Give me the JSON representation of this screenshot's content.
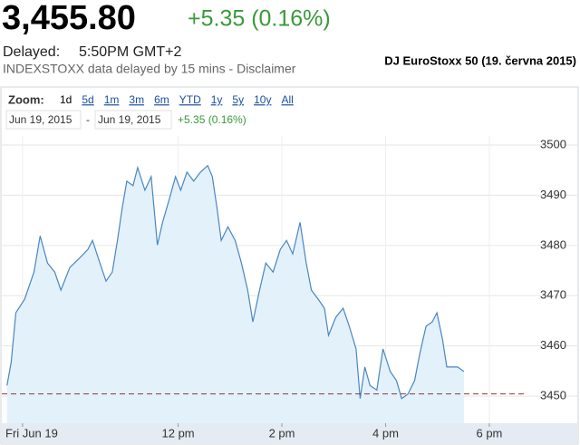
{
  "header": {
    "price": "3,455.80",
    "change": "+5.35 (0.16%)",
    "delayed_label": "Delayed:",
    "delayed_time": "5:50PM GMT+2",
    "source": "INDEXSTOXX data delayed by 15 mins - Disclaimer",
    "caption": "DJ EuroStoxx 50 (19. června 2015)"
  },
  "zoom": {
    "label": "Zoom:",
    "options": [
      "1d",
      "5d",
      "1m",
      "3m",
      "6m",
      "YTD",
      "1y",
      "5y",
      "10y",
      "All"
    ]
  },
  "range": {
    "from": "Jun 19, 2015",
    "separator": "-",
    "to": "Jun 19, 2015",
    "change": "+5.35 (0.16%)"
  },
  "chart_data": {
    "type": "area",
    "x": [
      8.7,
      8.78,
      8.87,
      9.04,
      9.22,
      9.34,
      9.48,
      9.62,
      9.74,
      9.91,
      10.09,
      10.26,
      10.35,
      10.49,
      10.61,
      10.73,
      10.83,
      10.92,
      11.01,
      11.13,
      11.22,
      11.36,
      11.48,
      11.6,
      11.7,
      11.83,
      11.95,
      12.05,
      12.17,
      12.3,
      12.43,
      12.57,
      12.66,
      12.75,
      12.83,
      12.96,
      13.1,
      13.22,
      13.34,
      13.44,
      13.57,
      13.69,
      13.83,
      13.97,
      14.09,
      14.21,
      14.35,
      14.47,
      14.57,
      14.7,
      14.82,
      14.9,
      15.04,
      15.18,
      15.3,
      15.43,
      15.51,
      15.6,
      15.7,
      15.83,
      15.95,
      16.09,
      16.21,
      16.31,
      16.43,
      16.56,
      16.66,
      16.78,
      16.9,
      16.99,
      17.1,
      17.18,
      17.39,
      17.51
    ],
    "series": [
      {
        "color": "#4a86c0",
        "values": [
          3452.1,
          3456.7,
          3466.6,
          3469.3,
          3474.7,
          3481.9,
          3476.5,
          3474.7,
          3471.1,
          3475.6,
          3477.4,
          3479.2,
          3481.0,
          3476.5,
          3472.9,
          3474.7,
          3481.0,
          3487.4,
          3492.8,
          3491.9,
          3495.5,
          3491.0,
          3493.7,
          3480.1,
          3484.6,
          3489.2,
          3493.7,
          3491.0,
          3494.6,
          3492.8,
          3494.6,
          3495.9,
          3493.7,
          3487.4,
          3481.0,
          3483.7,
          3481.0,
          3476.5,
          3471.1,
          3464.8,
          3471.1,
          3476.5,
          3474.7,
          3479.2,
          3481.0,
          3478.3,
          3484.6,
          3476.5,
          3471.1,
          3469.3,
          3467.5,
          3462.1,
          3465.7,
          3467.5,
          3463.9,
          3459.4,
          3449.5,
          3455.8,
          3452.1,
          3451.2,
          3459.4,
          3454.9,
          3453.1,
          3449.5,
          3450.4,
          3453.1,
          3458.5,
          3463.9,
          3464.8,
          3466.6,
          3461.2,
          3455.8,
          3455.8,
          3454.9
        ]
      }
    ],
    "reference_line": 3450.45,
    "xlim": [
      8.6,
      18.7
    ],
    "xticks": [
      {
        "value": 9,
        "label": "Fri Jun 19"
      },
      {
        "value": 12,
        "label": "12 pm"
      },
      {
        "value": 14,
        "label": "2 pm"
      },
      {
        "value": 16,
        "label": "4 pm"
      },
      {
        "value": 18,
        "label": "6 pm"
      }
    ],
    "ylim": [
      3444.6,
      3501.8
    ],
    "yticks": [
      3450,
      3460,
      3470,
      3480,
      3490,
      3500
    ],
    "grid": true
  }
}
